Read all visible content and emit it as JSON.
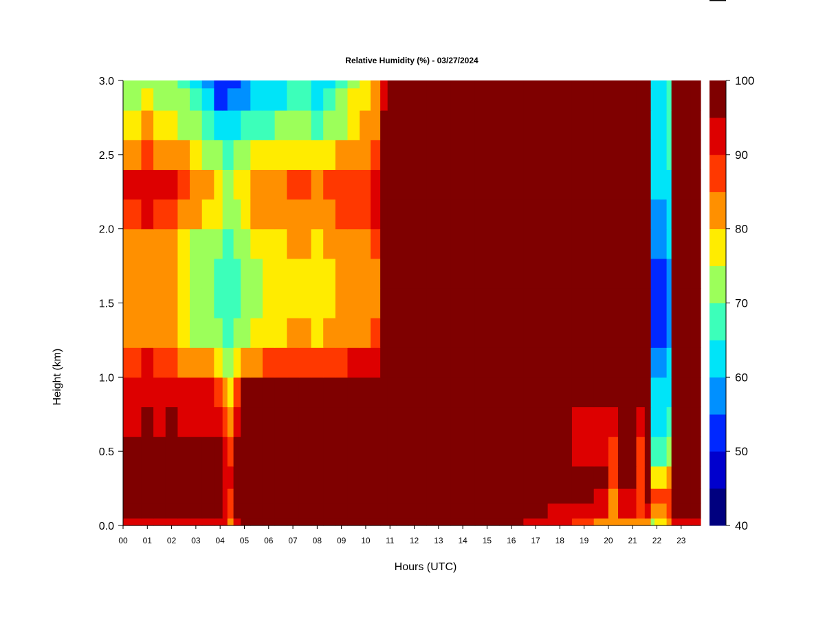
{
  "chart_data": {
    "type": "heatmap",
    "title": "Relative Humidity (%) - 03/27/2024",
    "xlabel": "Hours (UTC)",
    "ylabel": "Height (km)",
    "x_tick_labels": [
      "00",
      "01",
      "02",
      "03",
      "04",
      "05",
      "06",
      "07",
      "08",
      "09",
      "10",
      "11",
      "12",
      "13",
      "14",
      "15",
      "16",
      "17",
      "18",
      "19",
      "20",
      "21",
      "22",
      "23"
    ],
    "y_tick_labels": [
      "0.0",
      "0.5",
      "1.0",
      "1.5",
      "2.0",
      "2.5",
      "3.0"
    ],
    "xlim": [
      0,
      23.8
    ],
    "ylim": [
      0,
      3.0
    ],
    "colorbar": {
      "tick_labels": [
        "40",
        "50",
        "60",
        "70",
        "80",
        "90",
        "100"
      ],
      "levels": [
        40,
        45,
        50,
        55,
        60,
        65,
        70,
        75,
        80,
        85,
        90,
        95,
        100
      ],
      "colors": [
        "#00007f",
        "#0000cd",
        "#0028ff",
        "#0090ff",
        "#00e4f8",
        "#3cffba",
        "#9cff5a",
        "#ffec00",
        "#ff9000",
        "#ff3800",
        "#dd0000",
        "#7f0000"
      ]
    },
    "heights_km": [
      0.0,
      0.1,
      0.2,
      0.3,
      0.5,
      0.7,
      0.9,
      1.1,
      1.3,
      1.5,
      1.7,
      1.9,
      2.1,
      2.3,
      2.5,
      2.7,
      2.9,
      3.0
    ],
    "hours": [
      0,
      0.5,
      1,
      1.5,
      2,
      2.5,
      3,
      3.5,
      4,
      4.2,
      4.4,
      4.7,
      5,
      5.5,
      6,
      6.5,
      7,
      7.5,
      8,
      8.5,
      9,
      9.5,
      10,
      10.4,
      10.8,
      11,
      11.5,
      12,
      13,
      14,
      15,
      16,
      17,
      18,
      19,
      19.8,
      20.2,
      20.6,
      21,
      21.3,
      21.7,
      21.8,
      22,
      22.3,
      22.5,
      22.7,
      23,
      23.8
    ],
    "rh_percent": [
      [
        92,
        92,
        94,
        92,
        93,
        92,
        92,
        93,
        94,
        90,
        84,
        93,
        96,
        97,
        97,
        97,
        97,
        97,
        97,
        97,
        97,
        97,
        97,
        97,
        97,
        97,
        97,
        97,
        97,
        97,
        95,
        95,
        92,
        90,
        88,
        84,
        80,
        84,
        84,
        84,
        82,
        72,
        75,
        75,
        80,
        90,
        90,
        90
      ],
      [
        97,
        97,
        97,
        97,
        97,
        97,
        97,
        97,
        97,
        92,
        86,
        96,
        99,
        99,
        99,
        99,
        99,
        99,
        99,
        99,
        99,
        99,
        99,
        99,
        99,
        99,
        99,
        99,
        99,
        98,
        97,
        97,
        95,
        93,
        92,
        90,
        84,
        90,
        90,
        85,
        92,
        80,
        80,
        80,
        85,
        95,
        95,
        95
      ],
      [
        99,
        99,
        99,
        99,
        99,
        99,
        99,
        99,
        99,
        94,
        88,
        97,
        100,
        100,
        100,
        100,
        100,
        100,
        100,
        100,
        100,
        100,
        100,
        100,
        100,
        100,
        100,
        100,
        100,
        100,
        99,
        99,
        98,
        96,
        95,
        93,
        84,
        93,
        93,
        85,
        95,
        85,
        85,
        85,
        85,
        99,
        99,
        99
      ],
      [
        99,
        99,
        99,
        99,
        99,
        99,
        99,
        99,
        99,
        94,
        90,
        98,
        100,
        100,
        100,
        100,
        100,
        100,
        100,
        100,
        100,
        100,
        100,
        100,
        100,
        100,
        100,
        100,
        100,
        100,
        100,
        100,
        99,
        97,
        96,
        95,
        86,
        95,
        95,
        87,
        97,
        76,
        76,
        76,
        80,
        99,
        99,
        99
      ],
      [
        96,
        96,
        96,
        96,
        97,
        96,
        96,
        96,
        95,
        90,
        85,
        97,
        100,
        100,
        100,
        100,
        100,
        100,
        100,
        100,
        100,
        100,
        100,
        100,
        100,
        100,
        100,
        100,
        100,
        100,
        100,
        100,
        99,
        96,
        94,
        93,
        88,
        96,
        96,
        89,
        97,
        66,
        66,
        66,
        70,
        99,
        99,
        99
      ],
      [
        94,
        94,
        95,
        94,
        96,
        94,
        94,
        94,
        92,
        85,
        80,
        92,
        98,
        99,
        99,
        99,
        99,
        99,
        99,
        99,
        99,
        99,
        99,
        99,
        99,
        99,
        99,
        99,
        99,
        99,
        99,
        99,
        99,
        97,
        94,
        93,
        92,
        97,
        97,
        92,
        97,
        63,
        63,
        63,
        65,
        99,
        99,
        99
      ],
      [
        92,
        92,
        93,
        92,
        93,
        92,
        92,
        92,
        88,
        82,
        78,
        88,
        95,
        96,
        96,
        97,
        97,
        97,
        97,
        97,
        97,
        97,
        97,
        97,
        98,
        98,
        99,
        99,
        99,
        99,
        99,
        99,
        99,
        99,
        98,
        97,
        95,
        98,
        98,
        96,
        98,
        60,
        60,
        60,
        62,
        99,
        99,
        99
      ],
      [
        88,
        88,
        90,
        88,
        88,
        84,
        82,
        80,
        76,
        74,
        74,
        76,
        82,
        84,
        85,
        86,
        86,
        88,
        86,
        88,
        88,
        90,
        90,
        92,
        96,
        98,
        99,
        99,
        99,
        99,
        99,
        99,
        99,
        99,
        99,
        99,
        98,
        99,
        99,
        98,
        99,
        56,
        56,
        56,
        60,
        99,
        99,
        99
      ],
      [
        82,
        82,
        84,
        82,
        82,
        78,
        74,
        72,
        70,
        68,
        68,
        70,
        74,
        76,
        78,
        79,
        80,
        80,
        78,
        80,
        82,
        84,
        84,
        86,
        95,
        98,
        99,
        99,
        99,
        99,
        99,
        99,
        99,
        99,
        99,
        99,
        98,
        99,
        99,
        98,
        99,
        52,
        52,
        52,
        58,
        99,
        99,
        99
      ],
      [
        80,
        80,
        82,
        80,
        80,
        76,
        72,
        70,
        68,
        66,
        66,
        68,
        72,
        74,
        76,
        77,
        78,
        78,
        76,
        78,
        80,
        82,
        82,
        84,
        95,
        98,
        99,
        99,
        99,
        99,
        99,
        99,
        99,
        99,
        99,
        99,
        98,
        99,
        99,
        98,
        99,
        50,
        50,
        50,
        56,
        99,
        99,
        99
      ],
      [
        80,
        80,
        82,
        80,
        80,
        76,
        72,
        70,
        68,
        66,
        66,
        68,
        72,
        74,
        76,
        77,
        78,
        78,
        76,
        78,
        80,
        82,
        82,
        84,
        95,
        98,
        99,
        99,
        99,
        99,
        99,
        99,
        99,
        99,
        99,
        99,
        97,
        99,
        99,
        98,
        99,
        52,
        52,
        52,
        58,
        99,
        99,
        99
      ],
      [
        82,
        82,
        84,
        82,
        82,
        78,
        74,
        72,
        70,
        68,
        68,
        70,
        74,
        76,
        78,
        79,
        80,
        80,
        78,
        80,
        82,
        84,
        84,
        86,
        95,
        98,
        99,
        99,
        99,
        99,
        99,
        99,
        99,
        99,
        99,
        99,
        98,
        99,
        99,
        98,
        99,
        55,
        55,
        55,
        60,
        99,
        99,
        99
      ],
      [
        88,
        88,
        90,
        88,
        88,
        84,
        80,
        78,
        75,
        72,
        72,
        74,
        78,
        80,
        80,
        82,
        84,
        84,
        82,
        84,
        86,
        88,
        88,
        90,
        96,
        98,
        99,
        99,
        99,
        99,
        99,
        99,
        99,
        99,
        99,
        99,
        99,
        99,
        99,
        99,
        99,
        58,
        58,
        58,
        62,
        99,
        99,
        99
      ],
      [
        90,
        90,
        92,
        90,
        90,
        86,
        82,
        80,
        76,
        73,
        73,
        75,
        79,
        81,
        81,
        83,
        85,
        85,
        83,
        85,
        87,
        89,
        89,
        91,
        96,
        98,
        99,
        99,
        99,
        99,
        99,
        99,
        99,
        99,
        99,
        99,
        99,
        99,
        99,
        99,
        99,
        60,
        60,
        60,
        63,
        99,
        99,
        99
      ],
      [
        84,
        84,
        86,
        84,
        84,
        80,
        76,
        74,
        70,
        68,
        68,
        70,
        73,
        75,
        75,
        77,
        79,
        79,
        77,
        79,
        81,
        83,
        83,
        85,
        95,
        98,
        99,
        99,
        99,
        99,
        99,
        99,
        99,
        99,
        99,
        99,
        99,
        99,
        99,
        99,
        99,
        62,
        62,
        62,
        65,
        99,
        99,
        99
      ],
      [
        78,
        78,
        80,
        78,
        78,
        74,
        70,
        66,
        62,
        60,
        60,
        62,
        65,
        68,
        68,
        70,
        72,
        72,
        68,
        70,
        74,
        78,
        80,
        84,
        95,
        98,
        99,
        99,
        99,
        99,
        99,
        99,
        99,
        99,
        99,
        99,
        99,
        99,
        99,
        99,
        99,
        62,
        62,
        62,
        66,
        99,
        99,
        99
      ],
      [
        74,
        74,
        76,
        74,
        74,
        70,
        66,
        60,
        54,
        54,
        56,
        56,
        58,
        62,
        62,
        64,
        68,
        68,
        62,
        66,
        70,
        76,
        78,
        82,
        94,
        97,
        99,
        99,
        99,
        99,
        99,
        99,
        99,
        99,
        99,
        99,
        99,
        99,
        99,
        99,
        99,
        64,
        64,
        64,
        68,
        99,
        99,
        99
      ],
      [
        72,
        72,
        74,
        72,
        72,
        68,
        64,
        58,
        52,
        52,
        54,
        54,
        56,
        60,
        60,
        62,
        66,
        66,
        60,
        64,
        68,
        74,
        76,
        80,
        92,
        97,
        99,
        99,
        99,
        99,
        99,
        99,
        99,
        99,
        99,
        99,
        99,
        99,
        99,
        99,
        99,
        64,
        64,
        64,
        68,
        99,
        99,
        99
      ]
    ]
  }
}
